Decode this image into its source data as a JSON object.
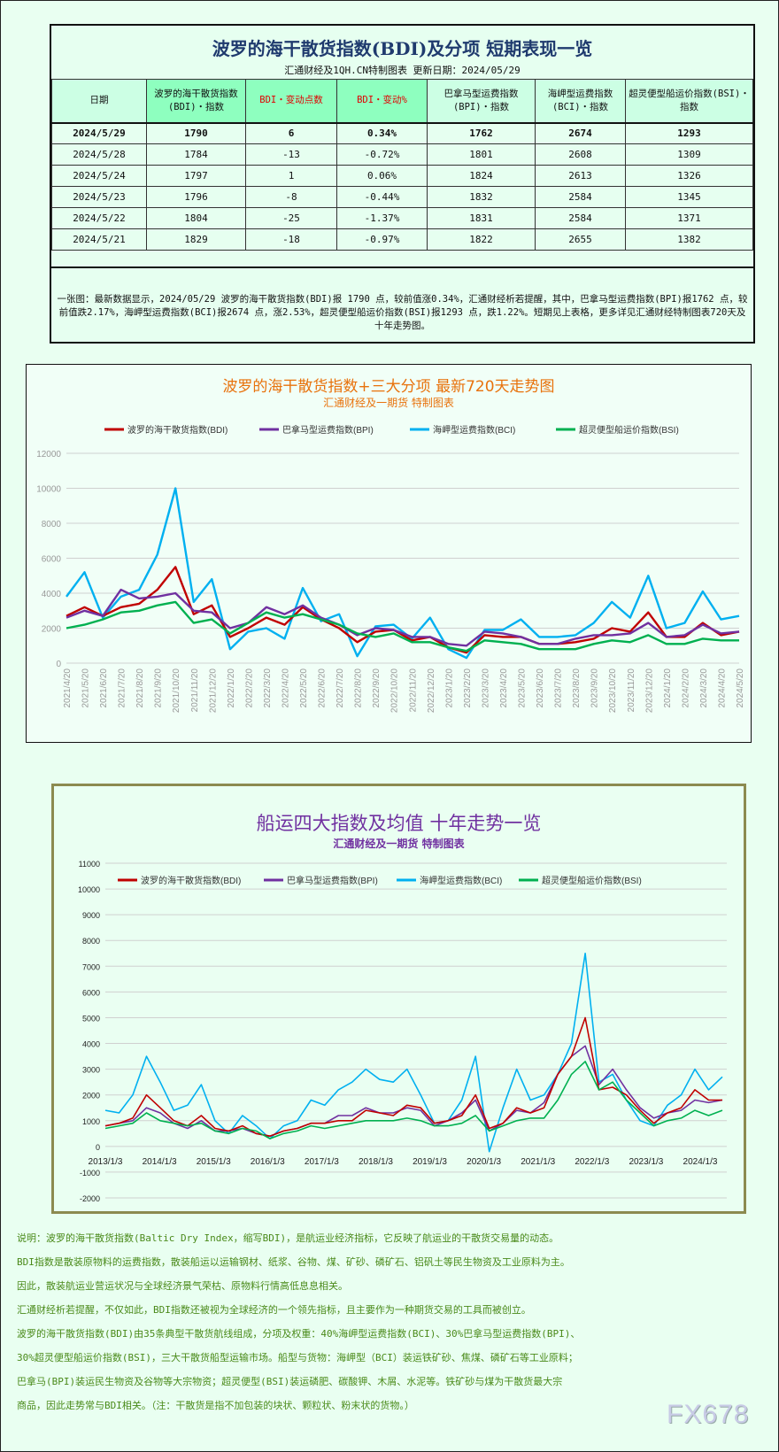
{
  "table": {
    "title": "波罗的海干散货指数(BDI)及分项 短期表现一览",
    "subtitle": "汇通财经及1QH.CN特制图表    更新日期：2024/05/29",
    "headers": [
      "日期",
      "波罗的海干散货指数(BDI)・指数",
      "BDI・变动点数",
      "BDI・变动%",
      "巴拿马型运费指数(BPI)・指数",
      "海岬型运费指数(BCI)・指数",
      "超灵便型船运价指数(BSI)・指数"
    ],
    "rows": [
      [
        "2024/5/29",
        "1790",
        "6",
        "0.34%",
        "1762",
        "2674",
        "1293"
      ],
      [
        "2024/5/28",
        "1784",
        "-13",
        "-0.72%",
        "1801",
        "2608",
        "1309"
      ],
      [
        "2024/5/24",
        "1797",
        "1",
        "0.06%",
        "1824",
        "2613",
        "1326"
      ],
      [
        "2024/5/23",
        "1796",
        "-8",
        "-0.44%",
        "1832",
        "2584",
        "1345"
      ],
      [
        "2024/5/22",
        "1804",
        "-25",
        "-1.37%",
        "1831",
        "2584",
        "1371"
      ],
      [
        "2024/5/21",
        "1829",
        "-18",
        "-0.97%",
        "1822",
        "2655",
        "1382"
      ]
    ],
    "note": "一张图：最新数据显示，2024/05/29 波罗的海干散货指数(BDI)报 1790 点，较前值涨0.34%，汇通财经析若提醒，其中，巴拿马型运费指数(BPI)报1762 点，较前值跌2.17%，海岬型运费指数(BCI)报2674 点，涨2.53%，超灵便型船运价指数(BSI)报1293 点，跌1.22%。短期见上表格，更多详见汇通财经特制图表720天及十年走势图。"
  },
  "chart_data": [
    {
      "type": "line",
      "title": "波罗的海干散货指数+三大分项  最新720天走势图",
      "subtitle": "汇通财经及一期货  特制图表",
      "ylim": [
        0,
        12000
      ],
      "yticks": [
        0,
        2000,
        4000,
        6000,
        8000,
        10000,
        12000
      ],
      "grid": true,
      "legend": "top",
      "x": [
        "2021/4/20",
        "2021/5/20",
        "2021/6/20",
        "2021/7/20",
        "2021/8/20",
        "2021/9/20",
        "2021/10/20",
        "2021/11/20",
        "2021/12/20",
        "2022/1/20",
        "2022/2/20",
        "2022/3/20",
        "2022/4/20",
        "2022/5/20",
        "2022/6/20",
        "2022/7/20",
        "2022/8/20",
        "2022/9/20",
        "2022/10/20",
        "2022/11/20",
        "2022/12/20",
        "2023/1/20",
        "2023/2/20",
        "2023/3/20",
        "2023/4/20",
        "2023/5/20",
        "2023/6/20",
        "2023/7/20",
        "2023/8/20",
        "2023/9/20",
        "2023/10/20",
        "2023/11/20",
        "2023/12/20",
        "2024/1/20",
        "2024/2/20",
        "2024/3/20",
        "2024/4/20",
        "2024/5/20"
      ],
      "series": [
        {
          "name": "波罗的海干散货指数(BDI)",
          "color": "#c00000",
          "values": [
            2700,
            3200,
            2700,
            3200,
            3400,
            4200,
            5500,
            2800,
            3300,
            1500,
            2000,
            2600,
            2200,
            3200,
            2500,
            2000,
            1200,
            1800,
            1900,
            1300,
            1500,
            900,
            600,
            1600,
            1500,
            1500,
            1100,
            1100,
            1200,
            1400,
            2000,
            1800,
            2900,
            1500,
            1500,
            2300,
            1600,
            1800
          ]
        },
        {
          "name": "巴拿马型运费指数(BPI)",
          "color": "#7030a0",
          "values": [
            2600,
            3000,
            2700,
            4200,
            3700,
            3800,
            4000,
            3000,
            2900,
            2000,
            2300,
            3200,
            2800,
            3300,
            2600,
            2200,
            1600,
            2000,
            1900,
            1500,
            1500,
            1100,
            1000,
            1800,
            1700,
            1500,
            1100,
            1100,
            1400,
            1600,
            1600,
            1700,
            2300,
            1500,
            1600,
            2200,
            1700,
            1800
          ]
        },
        {
          "name": "海岬型运费指数(BCI)",
          "color": "#00b0f0",
          "values": [
            3800,
            5200,
            2600,
            3800,
            4200,
            6200,
            10000,
            3500,
            4800,
            800,
            1800,
            2000,
            1400,
            4300,
            2400,
            2800,
            400,
            2100,
            2200,
            1400,
            2600,
            800,
            300,
            1900,
            1900,
            2500,
            1500,
            1500,
            1600,
            2300,
            3500,
            2600,
            5000,
            2000,
            2300,
            4100,
            2500,
            2700
          ]
        },
        {
          "name": "超灵便型船运价指数(BSI)",
          "color": "#00b050",
          "values": [
            2000,
            2200,
            2500,
            2900,
            3000,
            3300,
            3500,
            2300,
            2500,
            1700,
            2300,
            2900,
            2600,
            2800,
            2500,
            2200,
            1700,
            1500,
            1700,
            1200,
            1200,
            900,
            700,
            1300,
            1200,
            1100,
            800,
            800,
            800,
            1100,
            1300,
            1200,
            1600,
            1100,
            1100,
            1400,
            1300,
            1300
          ]
        }
      ]
    },
    {
      "type": "line",
      "title": "船运四大指数及均值 十年走势一览",
      "subtitle": "汇通财经及一期货 特制图表",
      "ylim": [
        -2000,
        11000
      ],
      "yticks": [
        -2000,
        -1000,
        0,
        1000,
        2000,
        3000,
        4000,
        5000,
        6000,
        7000,
        8000,
        9000,
        10000,
        11000
      ],
      "grid": true,
      "legend": "top",
      "xticks": [
        "2013/1/3",
        "2014/1/3",
        "2015/1/3",
        "2016/1/3",
        "2017/1/3",
        "2018/1/3",
        "2019/1/3",
        "2020/1/3",
        "2021/1/3",
        "2022/1/3",
        "2023/1/3",
        "2024/1/3"
      ],
      "series": [
        {
          "name": "波罗的海干散货指数(BDI)",
          "color": "#c00000",
          "values": [
            800,
            900,
            1100,
            2000,
            1500,
            1000,
            800,
            1200,
            700,
            600,
            800,
            500,
            400,
            600,
            700,
            900,
            900,
            1000,
            1000,
            1400,
            1300,
            1200,
            1600,
            1500,
            900,
            1000,
            1200,
            2000,
            700,
            900,
            1500,
            1300,
            1500,
            2800,
            3500,
            5000,
            2200,
            2300,
            2000,
            1400,
            900,
            1300,
            1500,
            2200,
            1800,
            1800
          ]
        },
        {
          "name": "巴拿马型运费指数(BPI)",
          "color": "#7030a0",
          "values": [
            800,
            900,
            1000,
            1500,
            1300,
            900,
            700,
            1000,
            600,
            600,
            700,
            500,
            400,
            600,
            700,
            900,
            900,
            1200,
            1200,
            1500,
            1300,
            1300,
            1500,
            1400,
            800,
            1000,
            1300,
            1800,
            600,
            900,
            1400,
            1300,
            1700,
            2800,
            3500,
            3900,
            2400,
            3000,
            2200,
            1500,
            1100,
            1300,
            1400,
            1800,
            1700,
            1800
          ]
        },
        {
          "name": "海岬型运费指数(BCI)",
          "color": "#00b0f0",
          "values": [
            1400,
            1300,
            2000,
            3500,
            2500,
            1400,
            1600,
            2400,
            1000,
            500,
            1200,
            800,
            300,
            800,
            1000,
            1800,
            1600,
            2200,
            2500,
            3000,
            2600,
            2500,
            3000,
            2000,
            900,
            1000,
            1800,
            3500,
            -200,
            1500,
            3000,
            1800,
            2000,
            2800,
            4000,
            7500,
            2500,
            2800,
            1800,
            1000,
            800,
            1600,
            2000,
            3000,
            2200,
            2700
          ]
        },
        {
          "name": "超灵便型船运价指数(BSI)",
          "color": "#00b050",
          "values": [
            700,
            800,
            900,
            1300,
            1000,
            900,
            800,
            900,
            600,
            500,
            700,
            600,
            300,
            500,
            600,
            800,
            700,
            800,
            900,
            1000,
            1000,
            1000,
            1100,
            1000,
            800,
            800,
            900,
            1200,
            600,
            800,
            1000,
            1100,
            1100,
            1800,
            2800,
            3300,
            2200,
            2500,
            1800,
            1300,
            800,
            1000,
            1100,
            1400,
            1200,
            1400
          ]
        }
      ]
    }
  ],
  "description": [
    "说明：波罗的海干散货指数(Baltic Dry Index，缩写BDI)，是航运业经济指标，它反映了航运业的干散货交易量的动态。",
    "BDI指数是散装原物料的运费指数，散装船运以运输钢材、纸浆、谷物、煤、矿砂、磷矿石、铝矾土等民生物资及工业原料为主。",
    "因此，散装航运业营运状况与全球经济景气荣枯、原物料行情高低息息相关。",
    "汇通财经析若提醒，不仅如此，BDI指数还被视为全球经济的一个领先指标，且主要作为一种期货交易的工具而被创立。",
    "波罗的海干散货指数(BDI)由35条典型干散货航线组成，分项及权重：40%海岬型运费指数(BCI)、30%巴拿马型运费指数(BPI)、",
    "30%超灵便型船运价指数(BSI)，三大干散货船型运输市场。船型与货物：海岬型（BCI）装运铁矿砂、焦煤、磷矿石等工业原料；",
    "巴拿马(BPI)装运民生物资及谷物等大宗物资；超灵便型(BSI)装运磷肥、碳酸钾、木屑、水泥等。铁矿砂与煤为干散货最大宗",
    "商品，因此走势常与BDI相关。（注：干散货是指不加包装的块状、颗粒状、粉末状的货物。）"
  ],
  "watermark": "FX678"
}
